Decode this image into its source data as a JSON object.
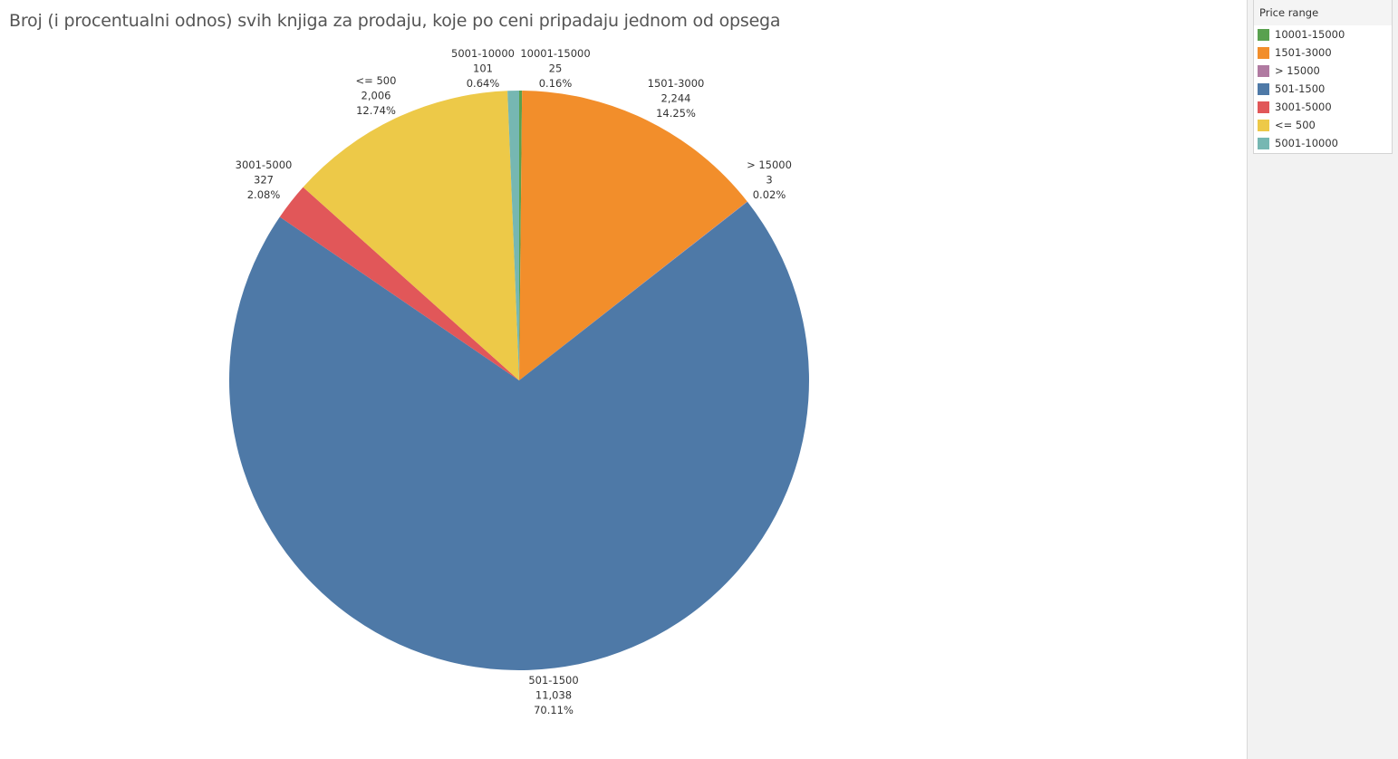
{
  "title": "Broj (i  procentualni odnos) svih knjiga za prodaju, koje po ceni pripadaju jednom od opsega",
  "legend": {
    "title": "Price range",
    "items": [
      {
        "label": "10001-15000",
        "color": "#59a14f"
      },
      {
        "label": "1501-3000",
        "color": "#f28e2b"
      },
      {
        "label": "> 15000",
        "color": "#b07aa1"
      },
      {
        "label": "501-1500",
        "color": "#4e79a7"
      },
      {
        "label": "3001-5000",
        "color": "#e15759"
      },
      {
        "label": "<= 500",
        "color": "#edc948"
      },
      {
        "label": "5001-10000",
        "color": "#76b7b2"
      }
    ]
  },
  "chart_data": {
    "type": "pie",
    "title": "Broj (i  procentualni odnos) svih knjiga za prodaju, koje po ceni pripadaju jednom od opsega",
    "slices": [
      {
        "category": "10001-15000",
        "count": 25,
        "count_label": "25",
        "percent": 0.16,
        "percent_label": "0.16%",
        "color": "#59a14f"
      },
      {
        "category": "1501-3000",
        "count": 2244,
        "count_label": "2,244",
        "percent": 14.25,
        "percent_label": "14.25%",
        "color": "#f28e2b"
      },
      {
        "category": "> 15000",
        "count": 3,
        "count_label": "3",
        "percent": 0.02,
        "percent_label": "0.02%",
        "color": "#b07aa1"
      },
      {
        "category": "501-1500",
        "count": 11038,
        "count_label": "11,038",
        "percent": 70.11,
        "percent_label": "70.11%",
        "color": "#4e79a7"
      },
      {
        "category": "3001-5000",
        "count": 327,
        "count_label": "327",
        "percent": 2.08,
        "percent_label": "2.08%",
        "color": "#e15759"
      },
      {
        "category": "<= 500",
        "count": 2006,
        "count_label": "2,006",
        "percent": 12.74,
        "percent_label": "12.74%",
        "color": "#edc948"
      },
      {
        "category": "5001-10000",
        "count": 101,
        "count_label": "101",
        "percent": 0.64,
        "percent_label": "0.64%",
        "color": "#76b7b2"
      }
    ]
  }
}
